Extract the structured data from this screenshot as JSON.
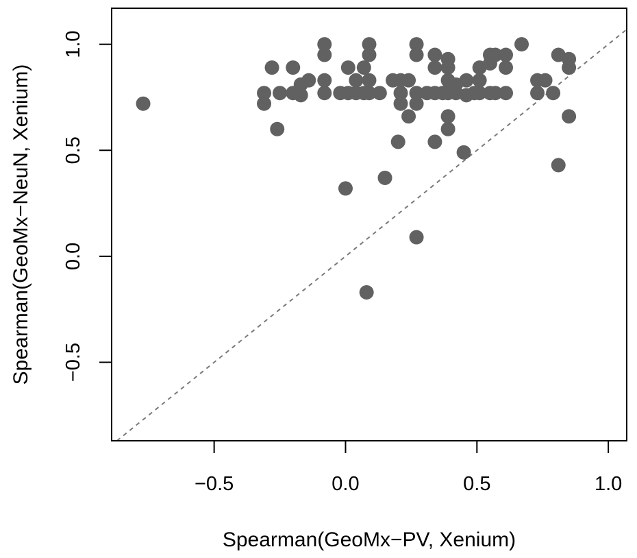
{
  "chart_data": {
    "type": "scatter",
    "xlabel": "Spearman(GeoMx−PV, Xenium)",
    "ylabel": "Spearman(GeoMx−NeuN, Xenium)",
    "xlim": [
      -0.89,
      1.07
    ],
    "ylim": [
      -0.87,
      1.17
    ],
    "xticks": [
      -0.5,
      0.0,
      0.5,
      1.0
    ],
    "yticks": [
      -0.5,
      0.0,
      0.5,
      1.0
    ],
    "xtick_labels": [
      "−0.5",
      "0.0",
      "0.5",
      "1.0"
    ],
    "ytick_labels": [
      "−0.5",
      "0.0",
      "0.5",
      "1.0"
    ],
    "grid": false,
    "reference_line": "y = x (dashed)",
    "colors": {
      "points": "#616161",
      "reference_line": "#7a7a7a",
      "frame": "#000000"
    },
    "points": [
      {
        "x": -0.77,
        "y": 0.72
      },
      {
        "x": -0.31,
        "y": 0.77
      },
      {
        "x": -0.31,
        "y": 0.72
      },
      {
        "x": -0.28,
        "y": 0.89
      },
      {
        "x": -0.25,
        "y": 0.77
      },
      {
        "x": -0.26,
        "y": 0.6
      },
      {
        "x": -0.2,
        "y": 0.89
      },
      {
        "x": -0.2,
        "y": 0.77
      },
      {
        "x": -0.17,
        "y": 0.81
      },
      {
        "x": -0.17,
        "y": 0.76
      },
      {
        "x": -0.14,
        "y": 0.83
      },
      {
        "x": -0.08,
        "y": 1.0
      },
      {
        "x": -0.08,
        "y": 0.95
      },
      {
        "x": -0.08,
        "y": 0.83
      },
      {
        "x": -0.08,
        "y": 0.77
      },
      {
        "x": -0.02,
        "y": 0.77
      },
      {
        "x": 0.01,
        "y": 0.89
      },
      {
        "x": 0.01,
        "y": 0.77
      },
      {
        "x": 0.04,
        "y": 0.83
      },
      {
        "x": 0.04,
        "y": 0.77
      },
      {
        "x": 0.07,
        "y": 0.89
      },
      {
        "x": 0.07,
        "y": 0.77
      },
      {
        "x": 0.09,
        "y": 1.0
      },
      {
        "x": 0.09,
        "y": 0.95
      },
      {
        "x": 0.09,
        "y": 0.83
      },
      {
        "x": 0.09,
        "y": 0.77
      },
      {
        "x": 0.13,
        "y": 0.77
      },
      {
        "x": 0.18,
        "y": 0.83
      },
      {
        "x": 0.21,
        "y": 0.83
      },
      {
        "x": 0.21,
        "y": 0.77
      },
      {
        "x": 0.21,
        "y": 0.72
      },
      {
        "x": 0.24,
        "y": 0.83
      },
      {
        "x": 0.24,
        "y": 0.66
      },
      {
        "x": 0.27,
        "y": 1.0
      },
      {
        "x": 0.27,
        "y": 0.95
      },
      {
        "x": 0.27,
        "y": 0.77
      },
      {
        "x": 0.27,
        "y": 0.72
      },
      {
        "x": 0.31,
        "y": 0.77
      },
      {
        "x": 0.34,
        "y": 0.95
      },
      {
        "x": 0.34,
        "y": 0.89
      },
      {
        "x": 0.34,
        "y": 0.77
      },
      {
        "x": 0.37,
        "y": 0.77
      },
      {
        "x": 0.39,
        "y": 0.93
      },
      {
        "x": 0.39,
        "y": 0.89
      },
      {
        "x": 0.39,
        "y": 0.83
      },
      {
        "x": 0.39,
        "y": 0.77
      },
      {
        "x": 0.39,
        "y": 0.66
      },
      {
        "x": 0.39,
        "y": 0.6
      },
      {
        "x": 0.42,
        "y": 0.81
      },
      {
        "x": 0.42,
        "y": 0.77
      },
      {
        "x": 0.46,
        "y": 0.83
      },
      {
        "x": 0.46,
        "y": 0.76
      },
      {
        "x": 0.49,
        "y": 0.77
      },
      {
        "x": 0.51,
        "y": 0.89
      },
      {
        "x": 0.51,
        "y": 0.83
      },
      {
        "x": 0.51,
        "y": 0.77
      },
      {
        "x": 0.55,
        "y": 0.95
      },
      {
        "x": 0.55,
        "y": 0.91
      },
      {
        "x": 0.55,
        "y": 0.77
      },
      {
        "x": 0.57,
        "y": 0.95
      },
      {
        "x": 0.57,
        "y": 0.77
      },
      {
        "x": 0.61,
        "y": 0.95
      },
      {
        "x": 0.61,
        "y": 0.89
      },
      {
        "x": 0.61,
        "y": 0.77
      },
      {
        "x": 0.67,
        "y": 1.0
      },
      {
        "x": 0.73,
        "y": 0.83
      },
      {
        "x": 0.73,
        "y": 0.77
      },
      {
        "x": 0.76,
        "y": 0.83
      },
      {
        "x": 0.79,
        "y": 0.77
      },
      {
        "x": 0.81,
        "y": 0.95
      },
      {
        "x": 0.85,
        "y": 0.93
      },
      {
        "x": 0.85,
        "y": 0.89
      },
      {
        "x": 0.2,
        "y": 0.54
      },
      {
        "x": 0.34,
        "y": 0.54
      },
      {
        "x": 0.45,
        "y": 0.49
      },
      {
        "x": 0.85,
        "y": 0.66
      },
      {
        "x": 0.81,
        "y": 0.43
      },
      {
        "x": 0.0,
        "y": 0.32
      },
      {
        "x": 0.15,
        "y": 0.37
      },
      {
        "x": 0.27,
        "y": 0.09
      },
      {
        "x": 0.08,
        "y": -0.17
      }
    ]
  }
}
